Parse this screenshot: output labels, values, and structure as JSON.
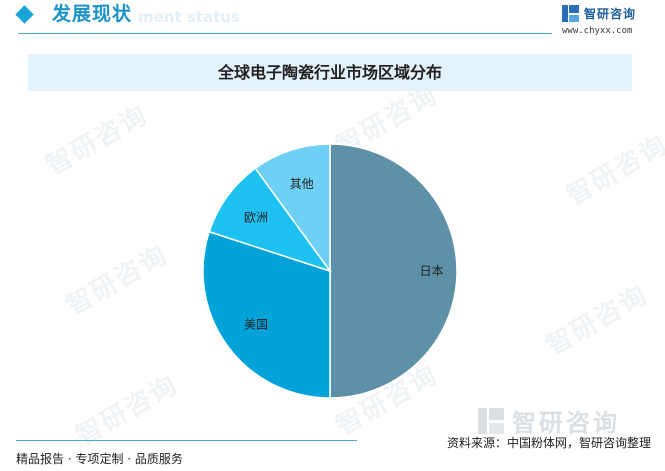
{
  "header": {
    "section_title": "发展现状",
    "section_subtitle": "ment status",
    "brand_name": "智研咨询",
    "brand_url": "www.chyxx.com"
  },
  "watermark": {
    "text": "智研咨询"
  },
  "footer": {
    "left_text": "精品报告 · 专项定制 · 品质服务",
    "source_text": "资料来源：中国粉体网，智研咨询整理"
  },
  "colors": {
    "accent": "#1c93c9",
    "title_bar": "#e3f1fa"
  },
  "chart_data": {
    "type": "pie",
    "title": "全球电子陶瓷行业市场区域分布",
    "slices": [
      {
        "label": "日本",
        "value": 50,
        "color": "#5e91a8"
      },
      {
        "label": "美国",
        "value": 30,
        "color": "#00a3d9"
      },
      {
        "label": "欧洲",
        "value": 10,
        "color": "#1ec2f2"
      },
      {
        "label": "其他",
        "value": 10,
        "color": "#6fd0f6"
      }
    ],
    "start_angle_deg": 0,
    "direction": "clockwise",
    "legend": "none",
    "labels_inside": true
  }
}
